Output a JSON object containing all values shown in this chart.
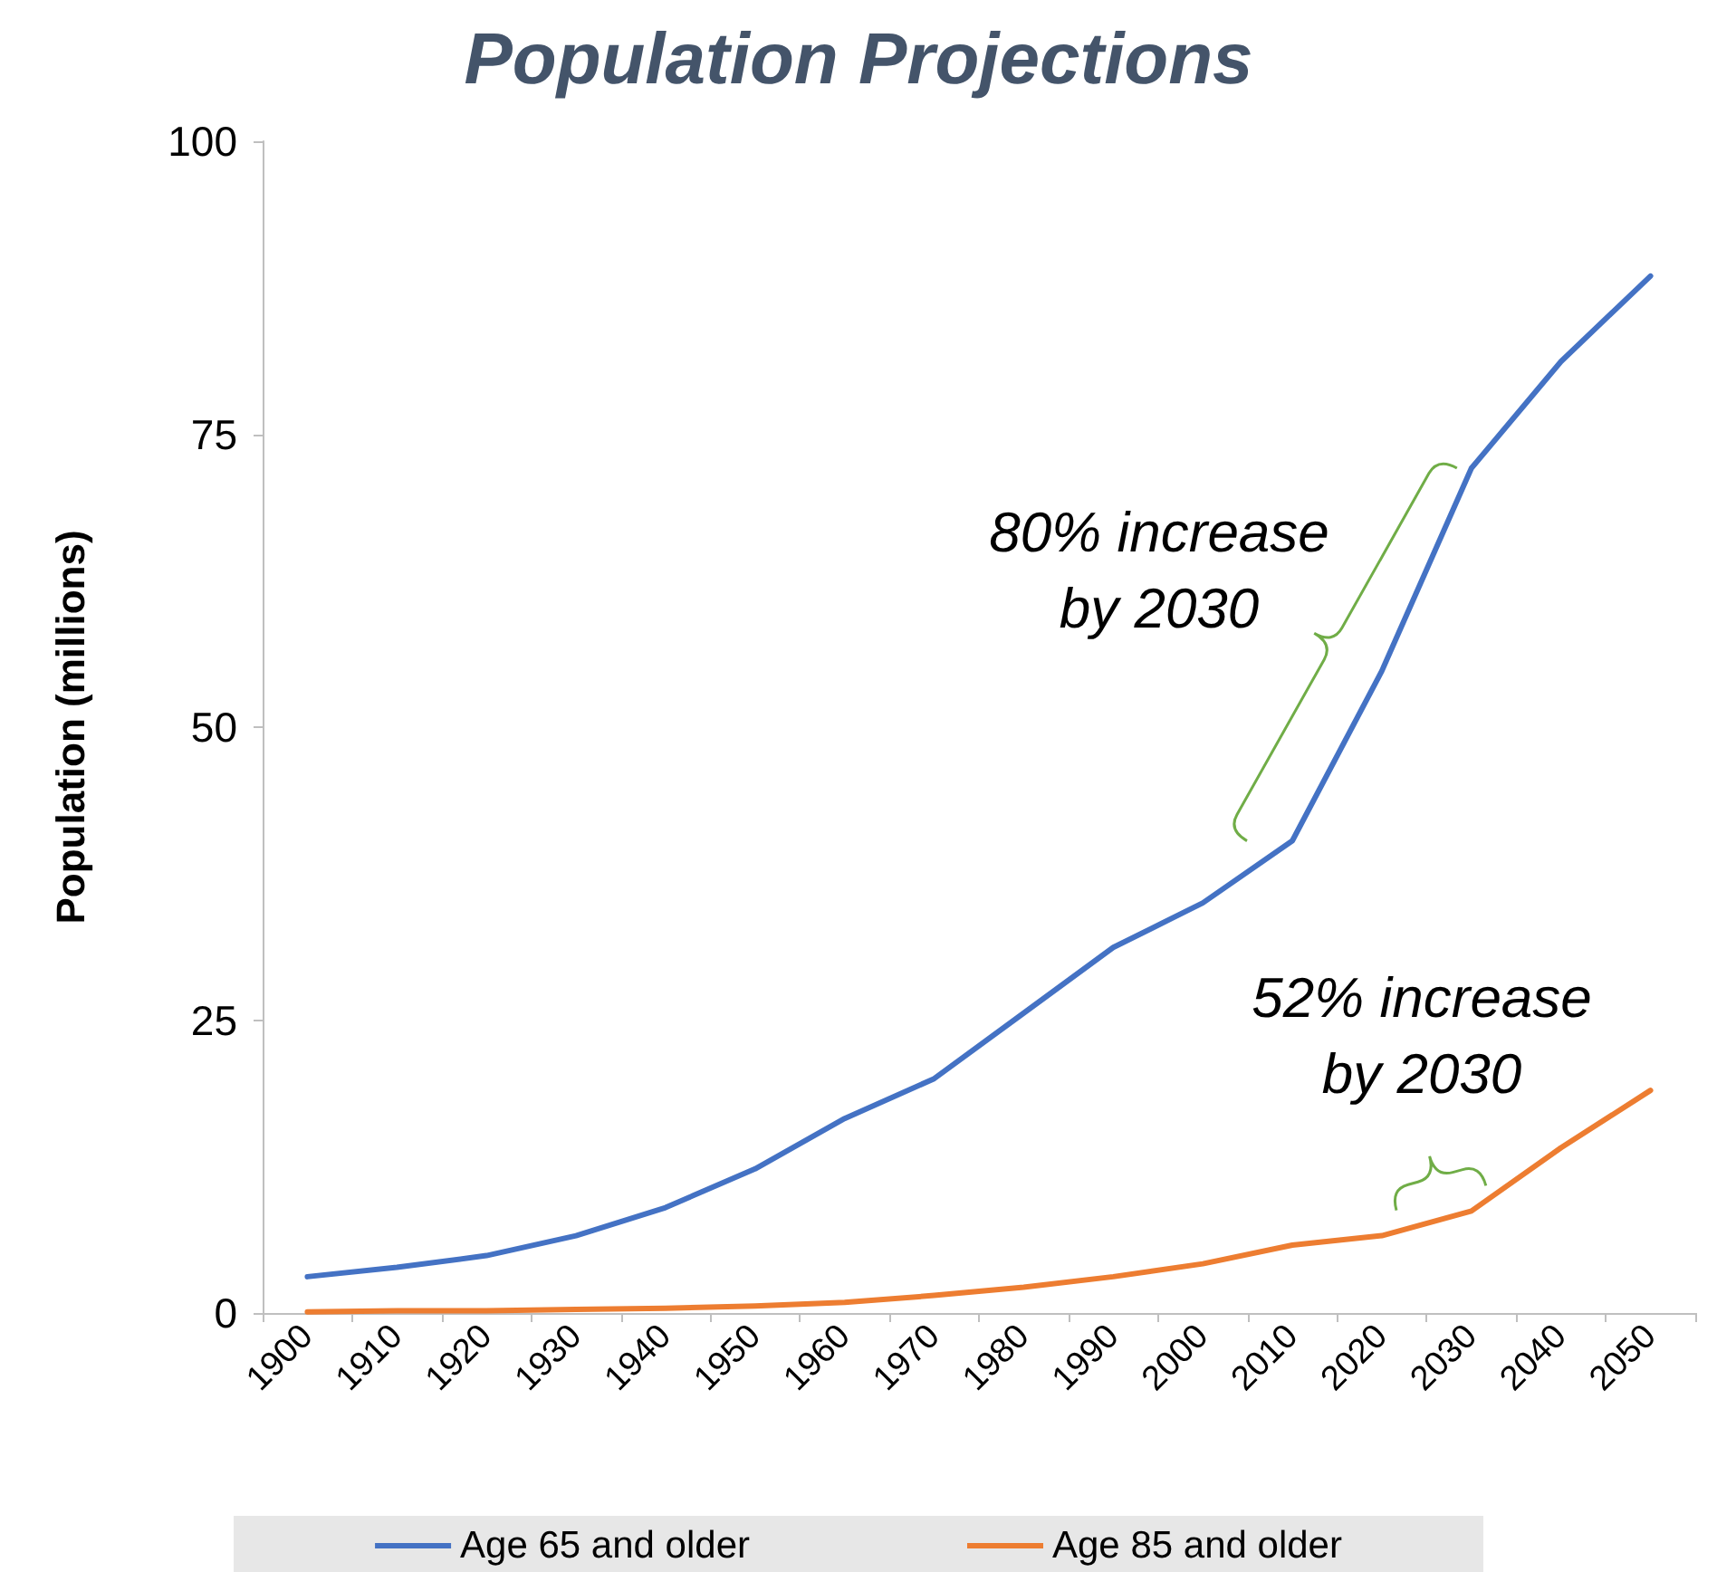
{
  "chart_data": {
    "type": "line",
    "title": "Population Projections",
    "ylabel": "Population (millions)",
    "categories": [
      "1900",
      "1910",
      "1920",
      "1930",
      "1940",
      "1950",
      "1960",
      "1970",
      "1980",
      "1990",
      "2000",
      "2010",
      "2020",
      "2030",
      "2040",
      "2050"
    ],
    "series": [
      {
        "name": "Age 65 and older",
        "color": "#4472c4",
        "values": [
          3.1,
          3.9,
          4.9,
          6.6,
          9.0,
          12.3,
          16.6,
          20.0,
          25.6,
          31.2,
          35.0,
          40.3,
          54.8,
          72.1,
          81.2,
          88.5
        ]
      },
      {
        "name": "Age 85 and older",
        "color": "#ed7d31",
        "values": [
          0.1,
          0.2,
          0.2,
          0.3,
          0.4,
          0.6,
          0.9,
          1.5,
          2.2,
          3.1,
          4.2,
          5.8,
          6.6,
          8.7,
          14.1,
          19.0
        ]
      }
    ],
    "ylim": [
      0,
      100
    ],
    "yticks": [
      0,
      25,
      50,
      75,
      100
    ],
    "grid": false,
    "legend": "bottom",
    "marker": "none",
    "line_style": "solid",
    "annotations": [
      "80% increase\nby 2030",
      "52% increase\nby 2030"
    ]
  }
}
